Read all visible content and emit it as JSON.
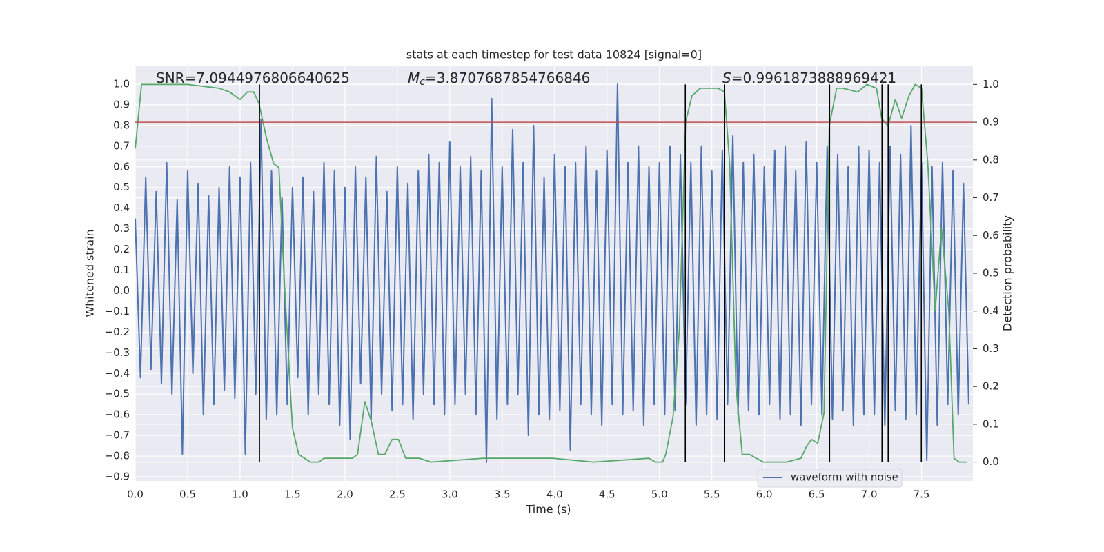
{
  "chart_data": {
    "type": "line",
    "title": "stats at each timestep for test data 10824 [signal=0]",
    "xlabel": "Time (s)",
    "ylabel": "Whitened strain",
    "y2label": "Detection probability",
    "annotations": [
      {
        "text": "SNR=7.0944976806640625"
      },
      {
        "symbol": "M",
        "subscript": "c",
        "text": "=3.8707687854766846"
      },
      {
        "symbol": "S",
        "text": "=0.9961873888969421"
      }
    ],
    "xlim": [
      0,
      7.99
    ],
    "ylim": [
      -0.92,
      1.09
    ],
    "y2lim": [
      -0.05,
      1.05
    ],
    "xticks": [
      {
        "value": 0,
        "label": "0.0"
      },
      {
        "value": 0.5,
        "label": "0.5"
      },
      {
        "value": 1,
        "label": "1.0"
      },
      {
        "value": 1.5,
        "label": "1.5"
      },
      {
        "value": 2,
        "label": "2.0"
      },
      {
        "value": 2.5,
        "label": "2.5"
      },
      {
        "value": 3,
        "label": "3.0"
      },
      {
        "value": 3.5,
        "label": "3.5"
      },
      {
        "value": 4,
        "label": "4.0"
      },
      {
        "value": 4.5,
        "label": "4.5"
      },
      {
        "value": 5,
        "label": "5.0"
      },
      {
        "value": 5.5,
        "label": "5.5"
      },
      {
        "value": 6,
        "label": "6.0"
      },
      {
        "value": 6.5,
        "label": "6.5"
      },
      {
        "value": 7,
        "label": "7.0"
      },
      {
        "value": 7.5,
        "label": "7.5"
      }
    ],
    "yticks": [
      {
        "value": -0.9,
        "label": "−0.9"
      },
      {
        "value": -0.8,
        "label": "−0.8"
      },
      {
        "value": -0.7,
        "label": "−0.7"
      },
      {
        "value": -0.6,
        "label": "−0.6"
      },
      {
        "value": -0.5,
        "label": "−0.5"
      },
      {
        "value": -0.4,
        "label": "−0.4"
      },
      {
        "value": -0.3,
        "label": "−0.3"
      },
      {
        "value": -0.2,
        "label": "−0.2"
      },
      {
        "value": -0.1,
        "label": "−0.1"
      },
      {
        "value": 0,
        "label": "0.0"
      },
      {
        "value": 0.1,
        "label": "0.1"
      },
      {
        "value": 0.2,
        "label": "0.2"
      },
      {
        "value": 0.3,
        "label": "0.3"
      },
      {
        "value": 0.4,
        "label": "0.4"
      },
      {
        "value": 0.5,
        "label": "0.5"
      },
      {
        "value": 0.6,
        "label": "0.6"
      },
      {
        "value": 0.7,
        "label": "0.7"
      },
      {
        "value": 0.8,
        "label": "0.8"
      },
      {
        "value": 0.9,
        "label": "0.9"
      },
      {
        "value": 1,
        "label": "1.0"
      }
    ],
    "y2ticks": [
      {
        "value": 0,
        "label": "0.0"
      },
      {
        "value": 0.1,
        "label": "0.1"
      },
      {
        "value": 0.2,
        "label": "0.2"
      },
      {
        "value": 0.3,
        "label": "0.3"
      },
      {
        "value": 0.4,
        "label": "0.4"
      },
      {
        "value": 0.5,
        "label": "0.5"
      },
      {
        "value": 0.6,
        "label": "0.6"
      },
      {
        "value": 0.7,
        "label": "0.7"
      },
      {
        "value": 0.8,
        "label": "0.8"
      },
      {
        "value": 0.9,
        "label": "0.9"
      },
      {
        "value": 1,
        "label": "1.0"
      }
    ],
    "grid": true,
    "legend": "lower right",
    "series": [
      {
        "name": "waveform with noise",
        "color": "#4c72b0",
        "x": [
          0,
          0.05,
          0.1,
          0.15,
          0.2,
          0.25,
          0.3,
          0.35,
          0.4,
          0.45,
          0.5,
          0.55,
          0.6,
          0.65,
          0.7,
          0.75,
          0.8,
          0.85,
          0.9,
          0.95,
          1,
          1.05,
          1.1,
          1.15,
          1.2,
          1.25,
          1.3,
          1.35,
          1.4,
          1.45,
          1.5,
          1.55,
          1.6,
          1.65,
          1.7,
          1.75,
          1.8,
          1.85,
          1.9,
          1.95,
          2,
          2.05,
          2.1,
          2.15,
          2.2,
          2.25,
          2.3,
          2.35,
          2.4,
          2.45,
          2.5,
          2.55,
          2.6,
          2.65,
          2.7,
          2.75,
          2.8,
          2.85,
          2.9,
          2.95,
          3,
          3.05,
          3.1,
          3.15,
          3.2,
          3.25,
          3.3,
          3.35,
          3.4,
          3.45,
          3.5,
          3.55,
          3.6,
          3.65,
          3.7,
          3.75,
          3.8,
          3.85,
          3.9,
          3.95,
          4,
          4.05,
          4.1,
          4.15,
          4.2,
          4.25,
          4.3,
          4.35,
          4.4,
          4.45,
          4.5,
          4.55,
          4.6,
          4.65,
          4.7,
          4.75,
          4.8,
          4.85,
          4.9,
          4.95,
          5,
          5.05,
          5.1,
          5.15,
          5.2,
          5.25,
          5.3,
          5.35,
          5.4,
          5.45,
          5.5,
          5.55,
          5.6,
          5.65,
          5.7,
          5.75,
          5.8,
          5.85,
          5.9,
          5.95,
          6,
          6.05,
          6.1,
          6.15,
          6.2,
          6.25,
          6.3,
          6.35,
          6.4,
          6.45,
          6.5,
          6.55,
          6.6,
          6.65,
          6.7,
          6.75,
          6.8,
          6.85,
          6.9,
          6.95,
          7,
          7.05,
          7.1,
          7.15,
          7.2,
          7.25,
          7.3,
          7.35,
          7.4,
          7.45,
          7.5,
          7.55,
          7.6,
          7.65,
          7.7,
          7.75,
          7.8,
          7.85,
          7.9,
          7.95
        ],
        "values": [
          0.35,
          -0.42,
          0.55,
          -0.38,
          0.48,
          -0.45,
          0.62,
          -0.5,
          0.44,
          -0.79,
          0.58,
          -0.4,
          0.52,
          -0.6,
          0.46,
          -0.55,
          0.5,
          -0.48,
          0.6,
          -0.52,
          0.55,
          -0.79,
          0.62,
          -0.5,
          0.83,
          -0.62,
          0.58,
          -0.6,
          0.45,
          -0.55,
          0.5,
          -0.42,
          0.55,
          -0.6,
          0.48,
          -0.5,
          0.62,
          -0.55,
          0.58,
          -0.65,
          0.5,
          -0.72,
          0.6,
          -0.45,
          0.55,
          -0.62,
          0.65,
          -0.5,
          0.48,
          -0.58,
          0.6,
          -0.55,
          0.52,
          -0.62,
          0.58,
          -0.5,
          0.66,
          -0.55,
          0.62,
          -0.6,
          0.72,
          -0.55,
          0.6,
          -0.5,
          0.65,
          -0.6,
          0.58,
          -0.83,
          0.93,
          -0.62,
          0.6,
          -0.55,
          0.78,
          -0.5,
          0.62,
          -0.7,
          0.8,
          -0.6,
          0.55,
          -0.62,
          0.66,
          -0.58,
          0.6,
          -0.77,
          0.62,
          -0.55,
          0.7,
          -0.6,
          0.58,
          -0.65,
          0.68,
          -0.55,
          1.0,
          -0.6,
          0.62,
          -0.58,
          0.7,
          -0.65,
          0.6,
          -0.55,
          0.62,
          -0.6,
          0.7,
          -0.58,
          0.66,
          -0.55,
          0.62,
          -0.65,
          0.7,
          -0.6,
          0.58,
          -0.62,
          0.68,
          -0.55,
          0.75,
          -0.6,
          0.62,
          -0.58,
          0.66,
          -0.6,
          0.6,
          -0.55,
          0.68,
          -0.62,
          0.7,
          -0.6,
          0.58,
          -0.65,
          0.72,
          -0.55,
          0.62,
          -0.6,
          0.7,
          -0.62,
          0.66,
          -0.58,
          0.6,
          -0.65,
          0.7,
          -0.6,
          0.68,
          -0.6,
          0.62,
          -0.65,
          0.7,
          -0.58,
          0.66,
          -0.62,
          0.8,
          -0.6,
          0.62,
          -0.82,
          0.6,
          -0.65,
          0.62,
          -0.55,
          0.58,
          -0.6,
          0.52,
          -0.55
        ]
      },
      {
        "color": "#55a868",
        "axis": "y2",
        "x": [
          0,
          0.06,
          0.12,
          0.5,
          0.8,
          0.9,
          0.95,
          1.0,
          1.07,
          1.13,
          1.18,
          1.25,
          1.32,
          1.37,
          1.42,
          1.5,
          1.56,
          1.67,
          1.75,
          1.8,
          1.94,
          2.07,
          2.12,
          2.19,
          2.25,
          2.32,
          2.38,
          2.45,
          2.51,
          2.58,
          2.65,
          2.71,
          2.82,
          3.32,
          3.98,
          4.37,
          4.9,
          4.96,
          5.03,
          5.06,
          5.13,
          5.19,
          5.25,
          5.31,
          5.39,
          5.46,
          5.56,
          5.62,
          5.67,
          5.73,
          5.79,
          5.86,
          5.99,
          6.21,
          6.35,
          6.4,
          6.45,
          6.51,
          6.57,
          6.62,
          6.69,
          6.75,
          6.89,
          6.98,
          7.07,
          7.12,
          7.18,
          7.25,
          7.31,
          7.38,
          7.44,
          7.5,
          7.56,
          7.63,
          7.69,
          7.76,
          7.81,
          7.86,
          7.93
        ],
        "values": [
          0.83,
          1.0,
          1.0,
          1.0,
          0.99,
          0.98,
          0.97,
          0.96,
          0.98,
          0.98,
          0.95,
          0.86,
          0.79,
          0.78,
          0.49,
          0.09,
          0.02,
          0.0,
          0.0,
          0.01,
          0.01,
          0.01,
          0.02,
          0.16,
          0.11,
          0.02,
          0.02,
          0.06,
          0.06,
          0.01,
          0.01,
          0.01,
          0.0,
          0.01,
          0.01,
          0.0,
          0.01,
          0.0,
          0.0,
          0.02,
          0.12,
          0.35,
          0.9,
          0.97,
          0.99,
          0.99,
          0.99,
          0.98,
          0.79,
          0.2,
          0.02,
          0.02,
          0.0,
          0.0,
          0.01,
          0.04,
          0.06,
          0.05,
          0.13,
          0.89,
          0.99,
          0.99,
          0.98,
          1.0,
          0.99,
          0.91,
          0.89,
          0.96,
          0.91,
          0.97,
          1.0,
          0.99,
          0.79,
          0.4,
          0.62,
          0.4,
          0.01,
          0.0,
          0.0
        ]
      }
    ],
    "hlines": [
      {
        "y": 0.9,
        "axis": "y2",
        "color": "#c44e52"
      }
    ],
    "vlines": {
      "x": [
        1.185,
        5.247,
        5.622,
        6.623,
        7.123,
        7.182,
        7.498
      ],
      "ymin": 0,
      "ymax": 1,
      "axis": "y2",
      "color": "#000000"
    }
  }
}
